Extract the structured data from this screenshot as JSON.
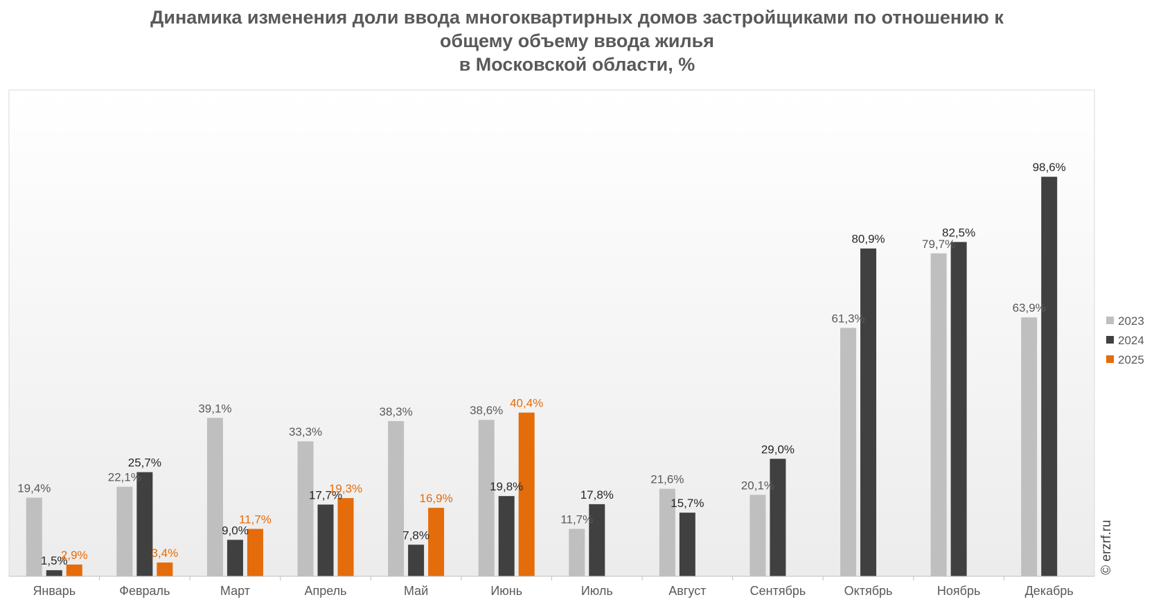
{
  "chart_data": {
    "type": "bar",
    "title": [
      "Динамика изменения доли ввода многоквартирных домов застройщиками по отношению к",
      "общему объему ввода жилья",
      "в Московской области, %"
    ],
    "categories": [
      "Январь",
      "Февраль",
      "Март",
      "Апрель",
      "Май",
      "Июнь",
      "Июль",
      "Август",
      "Сентябрь",
      "Октябрь",
      "Ноябрь",
      "Декабрь"
    ],
    "series": [
      {
        "name": "2023",
        "color": "#bfbfbf",
        "label_color": "#595959",
        "values": [
          19.4,
          22.1,
          39.1,
          33.3,
          38.3,
          38.6,
          11.7,
          21.6,
          20.1,
          61.3,
          79.7,
          63.9
        ],
        "labels": [
          "19,4%",
          "22,1%",
          "39,1%",
          "33,3%",
          "38,3%",
          "38,6%",
          "11,7%",
          "21,6%",
          "20,1%",
          "61,3%",
          "79,7%",
          "63,9%"
        ]
      },
      {
        "name": "2024",
        "color": "#404040",
        "label_color": "#262626",
        "values": [
          1.5,
          25.7,
          9.0,
          17.7,
          7.8,
          19.8,
          17.8,
          15.7,
          29.0,
          80.9,
          82.5,
          98.6
        ],
        "labels": [
          "1,5%",
          "25,7%",
          "9,0%",
          "17,7%",
          "7,8%",
          "19,8%",
          "17,8%",
          "15,7%",
          "29,0%",
          "80,9%",
          "82,5%",
          "98,6%"
        ]
      },
      {
        "name": "2025",
        "color": "#e46c0a",
        "label_color": "#e46c0a",
        "values": [
          2.9,
          3.4,
          11.7,
          19.3,
          16.9,
          40.4,
          null,
          null,
          null,
          null,
          null,
          null
        ],
        "labels": [
          "2,9%",
          "3,4%",
          "11,7%",
          "19,3%",
          "16,9%",
          "40,4%",
          "",
          "",
          "",
          "",
          "",
          ""
        ]
      }
    ],
    "ylim": [
      0,
      120
    ],
    "xlabel": "",
    "ylabel": "",
    "grid": false,
    "legend_position": "right",
    "watermark": "© erzrf.ru"
  }
}
